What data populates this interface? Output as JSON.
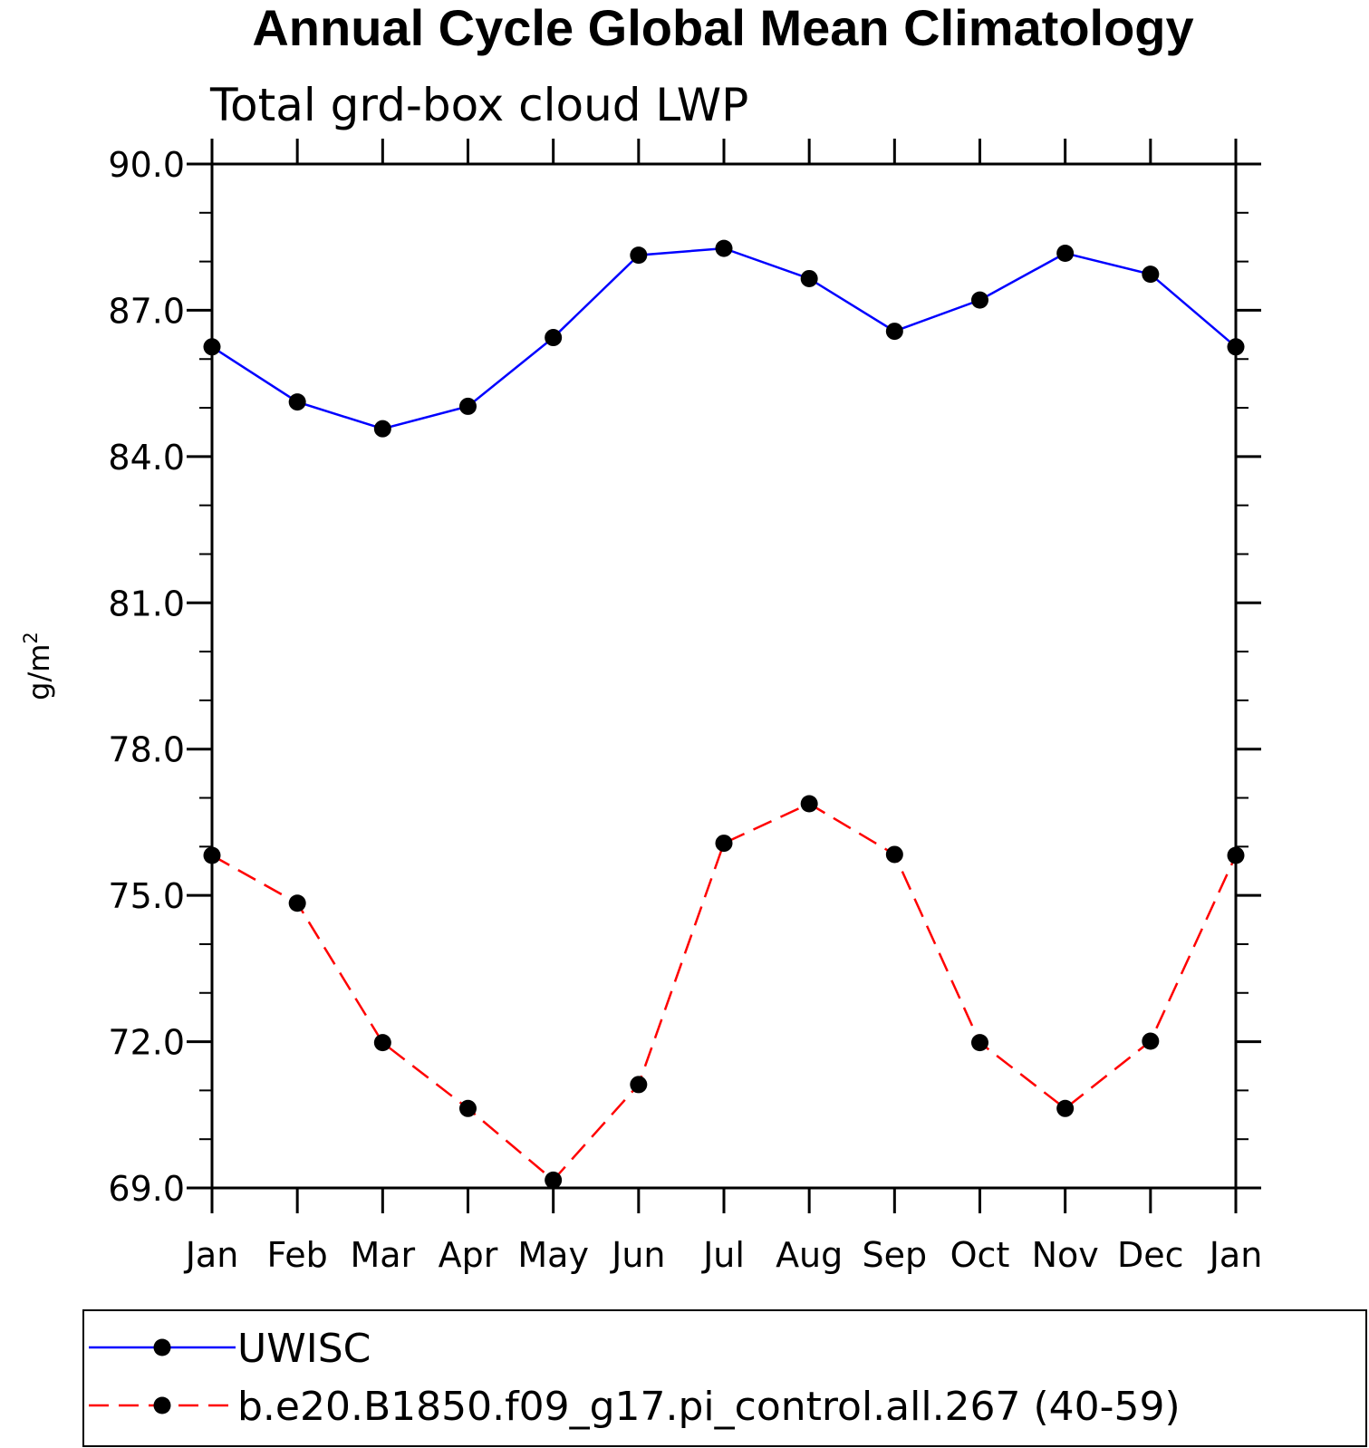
{
  "chart_data": {
    "type": "line",
    "title": "Annual Cycle Global Mean Climatology",
    "subtitle": "Total grd-box cloud LWP",
    "xlabel": "",
    "ylabel_base": "g/m",
    "ylabel_superscript": "2",
    "categories": [
      "Jan",
      "Feb",
      "Mar",
      "Apr",
      "May",
      "Jun",
      "Jul",
      "Aug",
      "Sep",
      "Oct",
      "Nov",
      "Dec",
      "Jan"
    ],
    "ylim": [
      69.0,
      90.0
    ],
    "yticks": [
      "90.0",
      "87.0",
      "84.0",
      "81.0",
      "78.0",
      "75.0",
      "72.0",
      "69.0"
    ],
    "ytick_values": [
      90,
      87,
      84,
      81,
      78,
      75,
      72,
      69
    ],
    "yminor_step": 1.0,
    "grid": false,
    "legend_position": "bottom",
    "series": [
      {
        "name": "UWISC",
        "color": "#0000ff",
        "dash": "solid",
        "marker": "filled-circle",
        "values": [
          86.25,
          85.12,
          84.57,
          85.03,
          86.44,
          88.13,
          88.27,
          87.65,
          86.57,
          87.21,
          88.17,
          87.74,
          86.25
        ]
      },
      {
        "name": "b.e20.B1850.f09_g17.pi_control.all.267 (40-59)",
        "color": "#ff0000",
        "dash": "dashed",
        "marker": "filled-circle",
        "values": [
          75.82,
          74.84,
          71.98,
          70.63,
          69.16,
          71.12,
          76.07,
          76.88,
          75.84,
          71.98,
          70.63,
          72.01,
          75.82
        ]
      }
    ]
  }
}
